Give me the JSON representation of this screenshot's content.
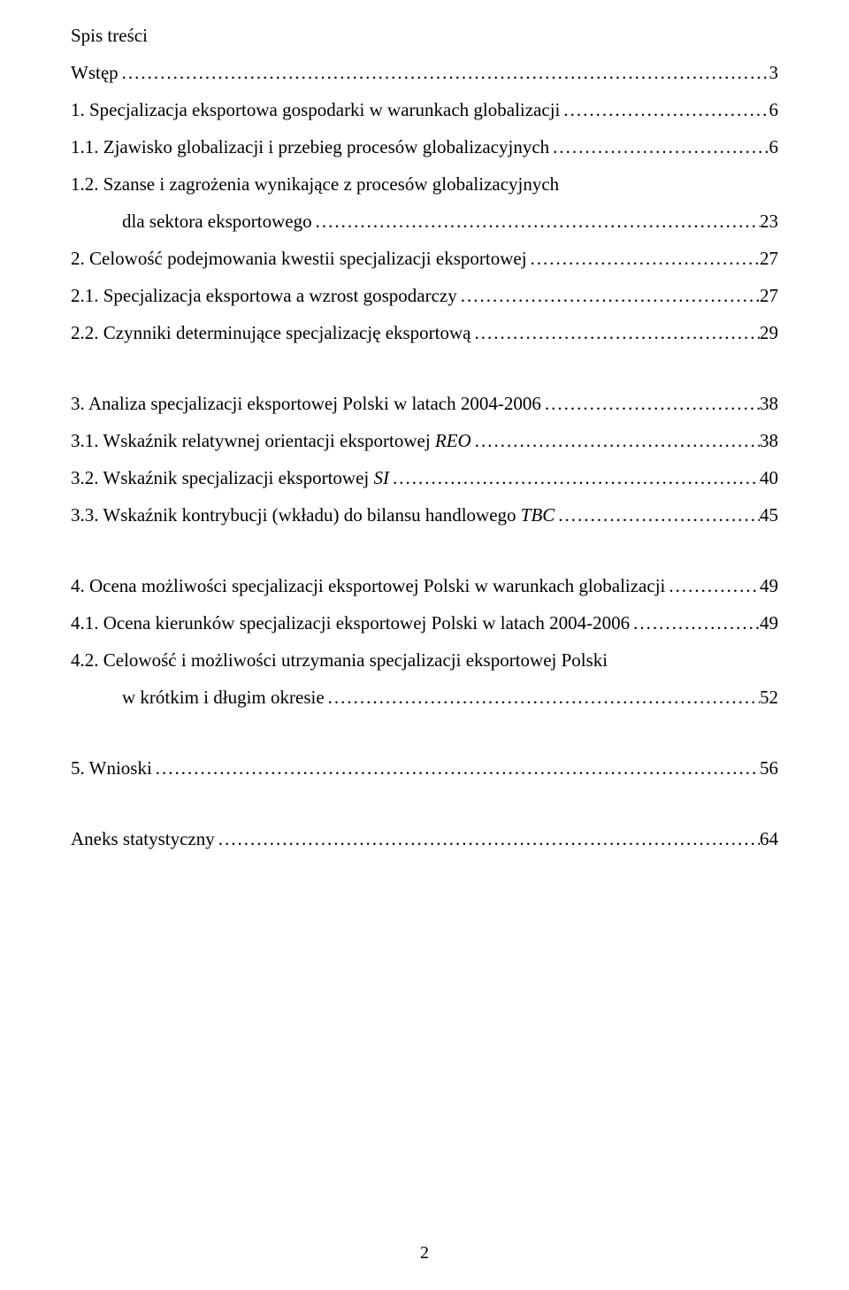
{
  "toc_title": "Spis treści",
  "page_number": "2",
  "entries": [
    {
      "label": "Wstęp",
      "page": "3",
      "indent": 0,
      "continuation": null
    },
    {
      "label": "1. Specjalizacja eksportowa gospodarki w warunkach globalizacji",
      "page": "6",
      "indent": 0,
      "continuation": null
    },
    {
      "label": "1.1. Zjawisko globalizacji i przebieg procesów globalizacyjnych",
      "page": "6",
      "indent": 0,
      "continuation": null
    },
    {
      "label": "1.2. Szanse i zagrożenia wynikające z procesów globalizacyjnych",
      "page": null,
      "indent": 0,
      "continuation": null
    },
    {
      "label": "dla sektora eksportowego",
      "page": "23",
      "indent": 1,
      "continuation": null
    },
    {
      "label": "2. Celowość podejmowania kwestii specjalizacji eksportowej",
      "page": "27",
      "indent": 0,
      "continuation": null
    },
    {
      "label": "2.1. Specjalizacja eksportowa a wzrost gospodarczy",
      "page": "27",
      "indent": 0,
      "continuation": null
    },
    {
      "label": "2.2. Czynniki determinujące specjalizację eksportową",
      "page": "29",
      "indent": 0,
      "continuation": null
    }
  ],
  "entries_block2": [
    {
      "label_plain": "3. Analiza specjalizacji eksportowej Polski w latach 2004-2006",
      "label_italic": "",
      "page": "38",
      "indent": 0
    },
    {
      "label_plain": "3.1. Wskaźnik relatywnej orientacji eksportowej ",
      "label_italic": "REO",
      "page": "38",
      "indent": 0
    },
    {
      "label_plain": "3.2. Wskaźnik specjalizacji eksportowej ",
      "label_italic": "SI",
      "page": "40",
      "indent": 0
    },
    {
      "label_plain": "3.3. Wskaźnik kontrybucji (wkładu) do bilansu handlowego ",
      "label_italic": "TBC",
      "page": "45",
      "indent": 0
    }
  ],
  "entries_block3": [
    {
      "label": "4. Ocena możliwości specjalizacji eksportowej Polski w warunkach globalizacji",
      "page": "49",
      "indent": 0
    },
    {
      "label": "4.1. Ocena kierunków specjalizacji eksportowej Polski w latach 2004-2006",
      "page": "49",
      "indent": 0
    },
    {
      "label": "4.2. Celowość i możliwości utrzymania specjalizacji eksportowej Polski",
      "page": null,
      "indent": 0
    },
    {
      "label": "w krótkim i długim okresie",
      "page": "52",
      "indent": 1
    }
  ],
  "entries_block4": [
    {
      "label": "5. Wnioski",
      "page": "56",
      "indent": 0
    }
  ],
  "entries_block5": [
    {
      "label": "Aneks statystyczny",
      "page": "64",
      "indent": 0
    }
  ]
}
